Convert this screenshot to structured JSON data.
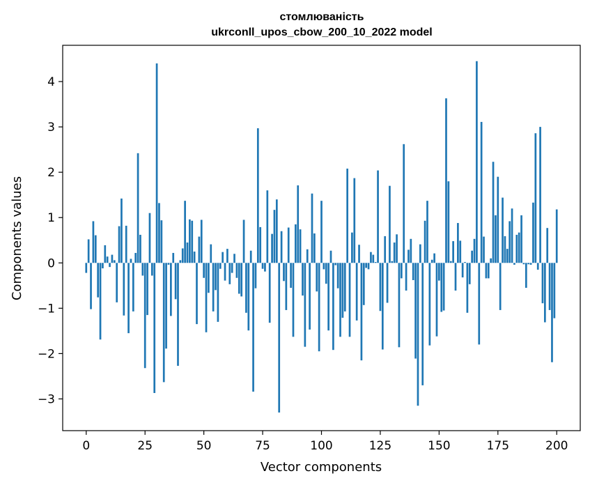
{
  "chart_data": {
    "type": "bar",
    "title": "стомлюваність",
    "subtitle": "ukrconll_upos_cbow_200_10_2022 model",
    "xlabel": "Vector components",
    "ylabel": "Components values",
    "xlim": [
      -10,
      210
    ],
    "ylim": [
      -3.7,
      4.8
    ],
    "xticks": [
      0,
      25,
      50,
      75,
      100,
      125,
      150,
      175,
      200
    ],
    "yticks": [
      -3,
      -2,
      -1,
      0,
      1,
      2,
      3,
      4
    ],
    "xtick_labels": [
      "0",
      "25",
      "50",
      "75",
      "100",
      "125",
      "150",
      "175",
      "200"
    ],
    "ytick_labels": [
      "−3",
      "−2",
      "−1",
      "0",
      "1",
      "2",
      "3",
      "4"
    ],
    "grid": false,
    "bar_color": "#1f77b4",
    "values": [
      -0.22,
      0.52,
      -1.02,
      0.92,
      0.61,
      -0.76,
      -1.69,
      -0.12,
      0.39,
      0.14,
      -0.09,
      0.18,
      0.06,
      -0.87,
      0.81,
      1.42,
      -1.16,
      0.82,
      -1.55,
      0.09,
      -1.07,
      0.22,
      2.42,
      0.62,
      -0.28,
      -2.32,
      -1.15,
      1.1,
      -0.28,
      -2.87,
      4.4,
      1.32,
      0.94,
      -2.63,
      -1.89,
      -0.04,
      -1.17,
      0.22,
      -0.8,
      -2.27,
      0.06,
      0.32,
      1.37,
      0.45,
      0.96,
      0.93,
      0.25,
      -1.35,
      0.58,
      0.95,
      -0.33,
      -1.53,
      -0.66,
      0.41,
      -1.07,
      -0.6,
      -1.3,
      -0.13,
      0.24,
      -0.39,
      0.31,
      -0.47,
      -0.22,
      0.2,
      -0.33,
      -0.68,
      -0.74,
      0.95,
      -1.1,
      -1.49,
      0.27,
      -2.84,
      -0.56,
      2.97,
      0.79,
      -0.13,
      -0.19,
      1.6,
      -1.32,
      0.64,
      1.17,
      1.4,
      -3.3,
      0.7,
      -0.4,
      -1.04,
      0.78,
      -0.55,
      -1.63,
      0.85,
      1.71,
      0.74,
      -0.72,
      -1.85,
      0.3,
      -1.47,
      1.53,
      0.65,
      -0.63,
      -1.95,
      1.37,
      -0.14,
      -0.46,
      -1.49,
      0.27,
      -1.92,
      -0.05,
      -0.56,
      -1.63,
      -1.21,
      -1.07,
      2.08,
      -1.63,
      0.67,
      1.87,
      -1.27,
      0.4,
      -2.15,
      -0.93,
      -0.11,
      -0.14,
      0.24,
      0.18,
      0.02,
      2.04,
      -1.06,
      -1.91,
      0.59,
      -0.88,
      1.7,
      0.04,
      0.45,
      0.63,
      -1.86,
      -0.34,
      2.62,
      -0.61,
      0.29,
      0.53,
      -0.38,
      -2.11,
      -3.15,
      0.41,
      -2.7,
      0.93,
      1.37,
      -1.82,
      0.07,
      0.21,
      -1.62,
      -0.39,
      -1.08,
      -1.05,
      3.63,
      1.8,
      0.04,
      0.48,
      -0.61,
      0.88,
      0.49,
      -0.32,
      0.02,
      -1.1,
      -0.47,
      0.27,
      0.53,
      4.45,
      -1.8,
      3.11,
      0.58,
      -0.34,
      -0.34,
      0.1,
      2.23,
      1.05,
      1.9,
      -1.04,
      1.44,
      0.59,
      0.31,
      0.92,
      1.2,
      -0.04,
      0.62,
      0.67,
      1.05,
      -0.03,
      -0.55,
      -0.03,
      -0.04,
      1.33,
      2.86,
      -0.15,
      3.0,
      -0.89,
      -1.31,
      0.77,
      -1.04,
      -2.19,
      -1.22,
      1.18
    ]
  }
}
